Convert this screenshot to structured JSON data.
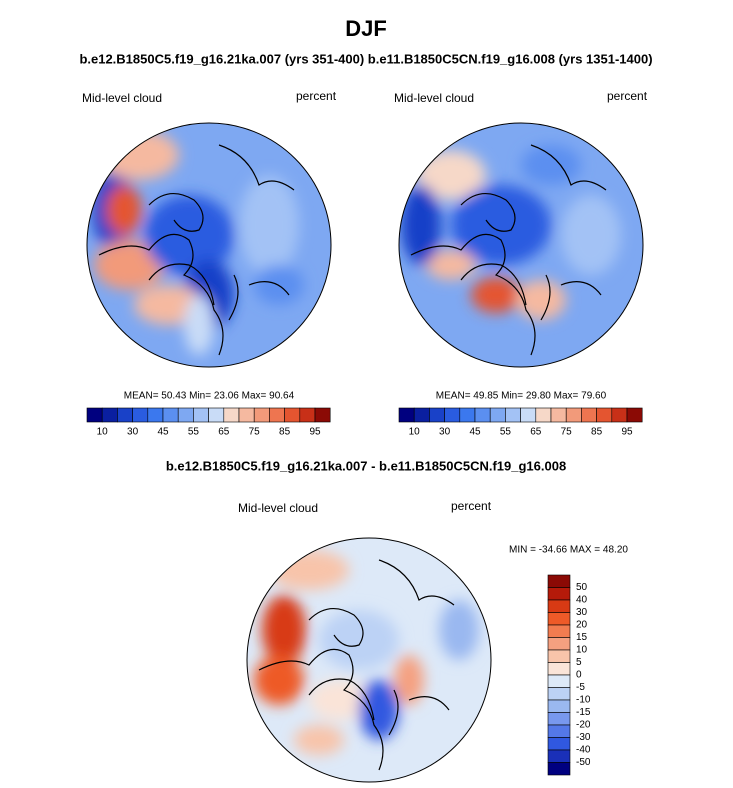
{
  "header": {
    "title": "DJF",
    "subtitle": "b.e12.B1850C5.f19_g16.21ka.007 (yrs 351-400) b.e11.B1850C5CN.f19_g16.008 (yrs 1351-1400)"
  },
  "panels": [
    {
      "left_label": "Mid-level cloud",
      "right_label": "percent",
      "stats": "MEAN=  50.43  Min=  23.06  Max=  90.64"
    },
    {
      "left_label": "Mid-level cloud",
      "right_label": "percent",
      "stats": "MEAN=  49.85  Min=  29.80  Max=  79.60"
    }
  ],
  "top_colorbar": {
    "colors": [
      "#00007f",
      "#0a1fa0",
      "#1941c8",
      "#2a5ce0",
      "#3b78ee",
      "#5b8ff0",
      "#7ea8f2",
      "#a3c2f5",
      "#c9dcf7",
      "#f6d8c8",
      "#f5b9a0",
      "#f29a7a",
      "#ee7550",
      "#e45530",
      "#c83018",
      "#8b0a05"
    ],
    "labels": [
      10,
      30,
      45,
      55,
      65,
      75,
      85,
      95
    ]
  },
  "difference": {
    "title": "b.e12.B1850C5.f19_g16.21ka.007 - b.e11.B1850C5CN.f19_g16.008",
    "left_label": "Mid-level cloud",
    "right_label": "percent",
    "stats": "MIN = -34.66 MAX =  48.20",
    "colorbar": {
      "colors": [
        "#8b0a05",
        "#b51a0a",
        "#d83a14",
        "#ee5a28",
        "#f27c50",
        "#f5a080",
        "#f8c4aa",
        "#fae4d8",
        "#dde9f8",
        "#bcd2f5",
        "#9ab8f0",
        "#7898ee",
        "#5478e8",
        "#3058e0",
        "#1a30b8",
        "#000080"
      ],
      "labels": [
        50,
        40,
        30,
        20,
        15,
        10,
        5,
        0,
        -5,
        -10,
        -15,
        -20,
        -30,
        -40,
        -50
      ]
    }
  }
}
